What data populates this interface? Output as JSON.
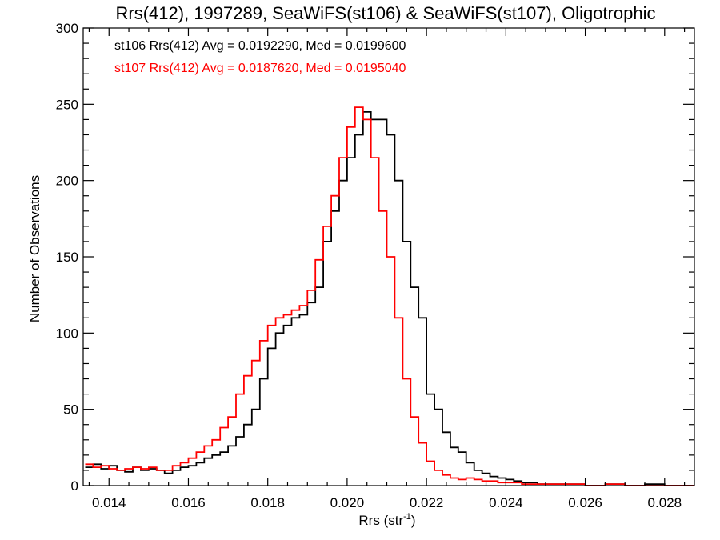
{
  "chart_data": {
    "type": "line",
    "title": "Rrs(412), 1997289, SeaWiFS(st106) & SeaWiFS(st107), Oligotrophic",
    "xlabel": "Rrs (str",
    "xlabel_sup": "-1",
    "xlabel_end": ")",
    "ylabel": "Number of Observations",
    "xlim": [
      0.01335,
      0.02875
    ],
    "ylim": [
      0,
      300
    ],
    "x_ticks": [
      0.014,
      0.016,
      0.018,
      0.02,
      0.022,
      0.024,
      0.026,
      0.028
    ],
    "x_tick_labels": [
      "0.014",
      "0.016",
      "0.018",
      "0.020",
      "0.022",
      "0.024",
      "0.026",
      "0.028"
    ],
    "y_ticks": [
      0,
      50,
      100,
      150,
      200,
      250,
      300
    ],
    "y_tick_labels": [
      "0",
      "50",
      "100",
      "150",
      "200",
      "250",
      "300"
    ],
    "grid": false,
    "colors": {
      "st106": "#000000",
      "st107": "#ff0000"
    },
    "annotations": [
      {
        "text": "st106 Rrs(412) Avg = 0.0192290, Med = 0.0199600",
        "color": "#000000"
      },
      {
        "text": "st107 Rrs(412) Avg = 0.0187620, Med = 0.0195040",
        "color": "#ff0000"
      }
    ],
    "series": [
      {
        "id": "st106",
        "color": "#000000",
        "x": [
          0.0134,
          0.0136,
          0.0138,
          0.014,
          0.0142,
          0.0144,
          0.0146,
          0.0148,
          0.015,
          0.0152,
          0.0154,
          0.0156,
          0.0158,
          0.016,
          0.0162,
          0.0164,
          0.0166,
          0.0168,
          0.017,
          0.0172,
          0.0174,
          0.0176,
          0.0178,
          0.018,
          0.0182,
          0.0184,
          0.0186,
          0.0188,
          0.019,
          0.0192,
          0.0194,
          0.0196,
          0.0198,
          0.02,
          0.0202,
          0.0204,
          0.0206,
          0.0208,
          0.021,
          0.0212,
          0.0214,
          0.0216,
          0.0218,
          0.022,
          0.0222,
          0.0224,
          0.0226,
          0.0228,
          0.023,
          0.0232,
          0.0234,
          0.0236,
          0.0238,
          0.024,
          0.0242,
          0.0244,
          0.0246,
          0.0248,
          0.025,
          0.0255,
          0.026,
          0.0265,
          0.027,
          0.0275,
          0.028,
          0.0285
        ],
        "values": [
          12,
          14,
          11,
          13,
          10,
          9,
          12,
          10,
          11,
          10,
          8,
          10,
          12,
          13,
          15,
          18,
          20,
          22,
          26,
          32,
          40,
          50,
          70,
          90,
          100,
          105,
          110,
          112,
          120,
          130,
          160,
          180,
          200,
          215,
          230,
          245,
          240,
          240,
          230,
          200,
          160,
          130,
          110,
          60,
          50,
          35,
          25,
          22,
          15,
          10,
          8,
          6,
          5,
          4,
          3,
          2,
          2,
          1,
          1,
          1,
          0,
          1,
          0,
          1,
          0,
          0
        ]
      },
      {
        "id": "st107",
        "color": "#ff0000",
        "x": [
          0.0134,
          0.0136,
          0.0138,
          0.014,
          0.0142,
          0.0144,
          0.0146,
          0.0148,
          0.015,
          0.0152,
          0.0154,
          0.0156,
          0.0158,
          0.016,
          0.0162,
          0.0164,
          0.0166,
          0.0168,
          0.017,
          0.0172,
          0.0174,
          0.0176,
          0.0178,
          0.018,
          0.0182,
          0.0184,
          0.0186,
          0.0188,
          0.019,
          0.0192,
          0.0194,
          0.0196,
          0.0198,
          0.02,
          0.0202,
          0.0204,
          0.0206,
          0.0208,
          0.021,
          0.0212,
          0.0214,
          0.0216,
          0.0218,
          0.022,
          0.0222,
          0.0224,
          0.0226,
          0.0228,
          0.023,
          0.0232,
          0.0234,
          0.0236,
          0.0238,
          0.024,
          0.0242,
          0.0244,
          0.0246,
          0.0248,
          0.025,
          0.0255,
          0.026,
          0.0265,
          0.027,
          0.0275,
          0.028,
          0.0285
        ],
        "values": [
          14,
          12,
          13,
          11,
          10,
          11,
          12,
          11,
          12,
          10,
          10,
          13,
          15,
          18,
          22,
          26,
          30,
          38,
          45,
          60,
          72,
          82,
          95,
          105,
          110,
          112,
          115,
          118,
          128,
          148,
          170,
          190,
          215,
          235,
          248,
          240,
          215,
          180,
          150,
          110,
          70,
          45,
          28,
          16,
          10,
          7,
          5,
          4,
          5,
          4,
          3,
          3,
          2,
          2,
          2,
          1,
          1,
          1,
          1,
          1,
          0,
          1,
          0,
          0,
          0,
          0
        ]
      }
    ]
  }
}
